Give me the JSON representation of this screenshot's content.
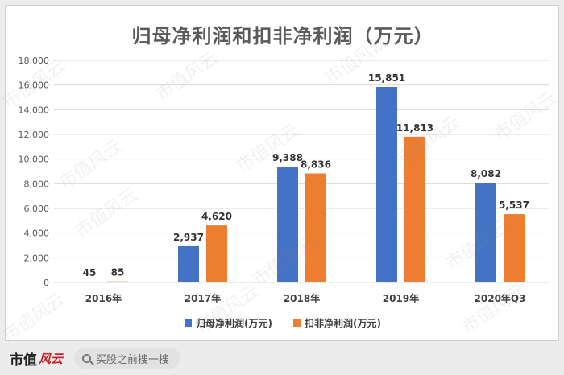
{
  "chart_data": {
    "type": "bar",
    "title": "归母净利润和扣非净利润（万元）",
    "categories": [
      "2016年",
      "2017年",
      "2018年",
      "2019年",
      "2020年Q3"
    ],
    "series": [
      {
        "name": "归母净利润(万元)",
        "values": [
          45,
          2937,
          9388,
          15851,
          8082
        ],
        "labels": [
          "45",
          "2,937",
          "9,388",
          "15,851",
          "8,082"
        ],
        "color": "#4472C4"
      },
      {
        "name": "扣非净利润(万元)",
        "values": [
          85,
          4620,
          8836,
          11813,
          5537
        ],
        "labels": [
          "85",
          "4,620",
          "8,836",
          "11,813",
          "5,537"
        ],
        "color": "#ED7D31"
      }
    ],
    "ylim": [
      0,
      18000
    ],
    "yticks": [
      0,
      2000,
      4000,
      6000,
      8000,
      10000,
      12000,
      14000,
      16000,
      18000
    ],
    "ytick_labels": [
      "0",
      "2,000",
      "4,000",
      "6,000",
      "8,000",
      "10,000",
      "12,000",
      "14,000",
      "16,000",
      "18,000"
    ],
    "grid": true,
    "legend": "bottom"
  },
  "watermark_text": "市值风云",
  "footer": {
    "brand_text": "市值",
    "brand_script": "风云",
    "search_text": "买股之前搜一搜",
    "search_icon": "search-icon"
  }
}
